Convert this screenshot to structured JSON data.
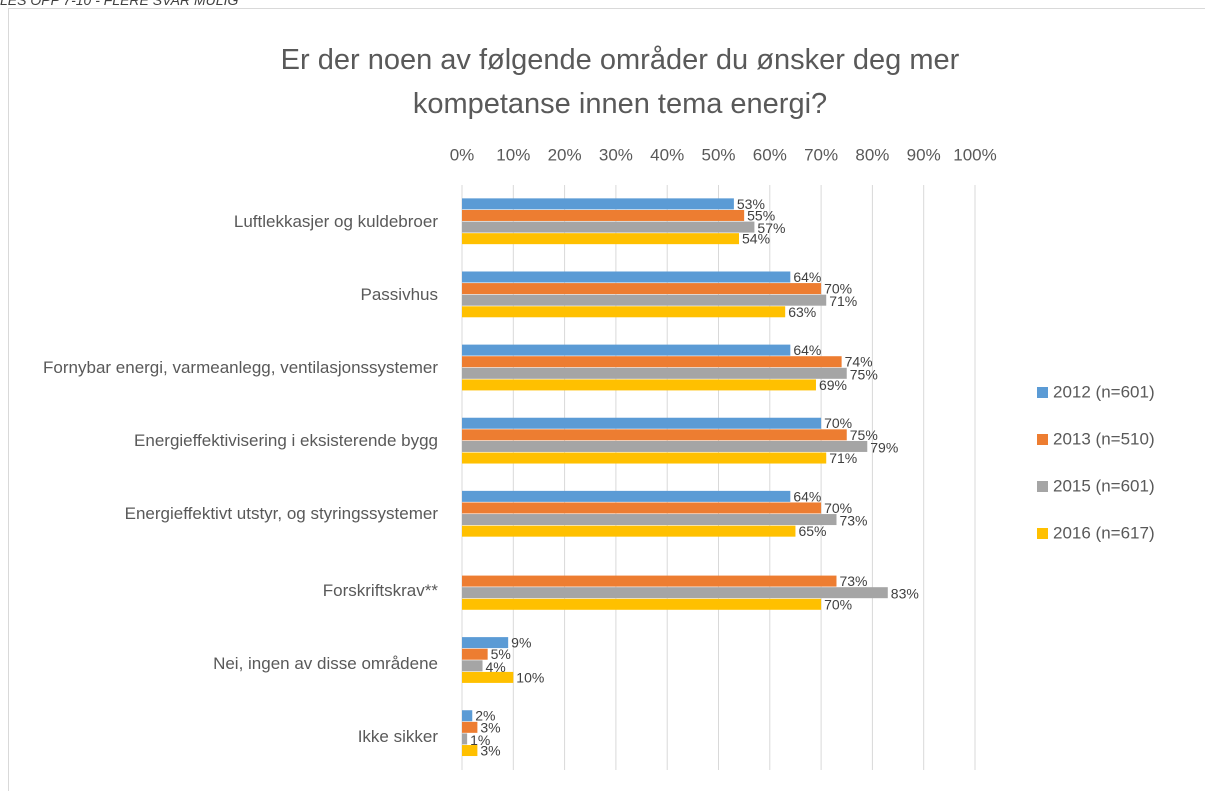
{
  "note": "LES OPP 7-10 - FLERE SVAR MULIG",
  "chart_data": {
    "type": "bar",
    "orientation": "horizontal",
    "title": "Er der noen av følgende områder du ønsker deg mer kompetanse innen tema energi?",
    "categories": [
      "Luftlekkasjer og kuldebroer",
      "Passivhus",
      "Fornybar energi, varmeanlegg, ventilasjonssystemer",
      "Energieffektivisering i eksisterende bygg",
      "Energieffektivt utstyr, og styringssystemer",
      "Forskriftskrav**",
      "Nei, ingen av disse områdene",
      "Ikke sikker"
    ],
    "series": [
      {
        "name": "2012 (n=601)",
        "color": "#5b9bd5",
        "values": [
          53,
          64,
          64,
          70,
          64,
          null,
          9,
          2
        ],
        "value_labels": [
          "53%",
          "64%",
          "64%",
          "70%",
          "64%",
          null,
          "9%",
          "2%"
        ]
      },
      {
        "name": "2013 (n=510)",
        "color": "#ed7d31",
        "values": [
          55,
          70,
          74,
          75,
          70,
          73,
          5,
          3
        ],
        "value_labels": [
          "55%",
          "70%",
          "74%",
          "75%",
          "70%",
          "73%",
          "5%",
          "3%"
        ]
      },
      {
        "name": "2015 (n=601)",
        "color": "#a5a5a5",
        "values": [
          57,
          71,
          75,
          79,
          73,
          83,
          4,
          1
        ],
        "value_labels": [
          "57%",
          "71%",
          "75%",
          "79%",
          "73%",
          "83%",
          "4%",
          "1%"
        ]
      },
      {
        "name": "2016 (n=617)",
        "color": "#ffc000",
        "values": [
          54,
          63,
          69,
          71,
          65,
          70,
          10,
          3
        ],
        "value_labels": [
          "54%",
          "63%",
          "69%",
          "71%",
          "65%",
          "70%",
          "10%",
          "3%"
        ]
      }
    ],
    "xlim": [
      0,
      100
    ],
    "xticks": [
      {
        "value": 0,
        "label": "0%"
      },
      {
        "value": 10,
        "label": "10%"
      },
      {
        "value": 20,
        "label": "20%"
      },
      {
        "value": 30,
        "label": "30%"
      },
      {
        "value": 40,
        "label": "40%"
      },
      {
        "value": 50,
        "label": "50%"
      },
      {
        "value": 60,
        "label": "60%"
      },
      {
        "value": 70,
        "label": "70%"
      },
      {
        "value": 80,
        "label": "80%"
      },
      {
        "value": 90,
        "label": "90%"
      },
      {
        "value": 100,
        "label": "100%"
      }
    ],
    "grid": true,
    "legend": "right"
  }
}
